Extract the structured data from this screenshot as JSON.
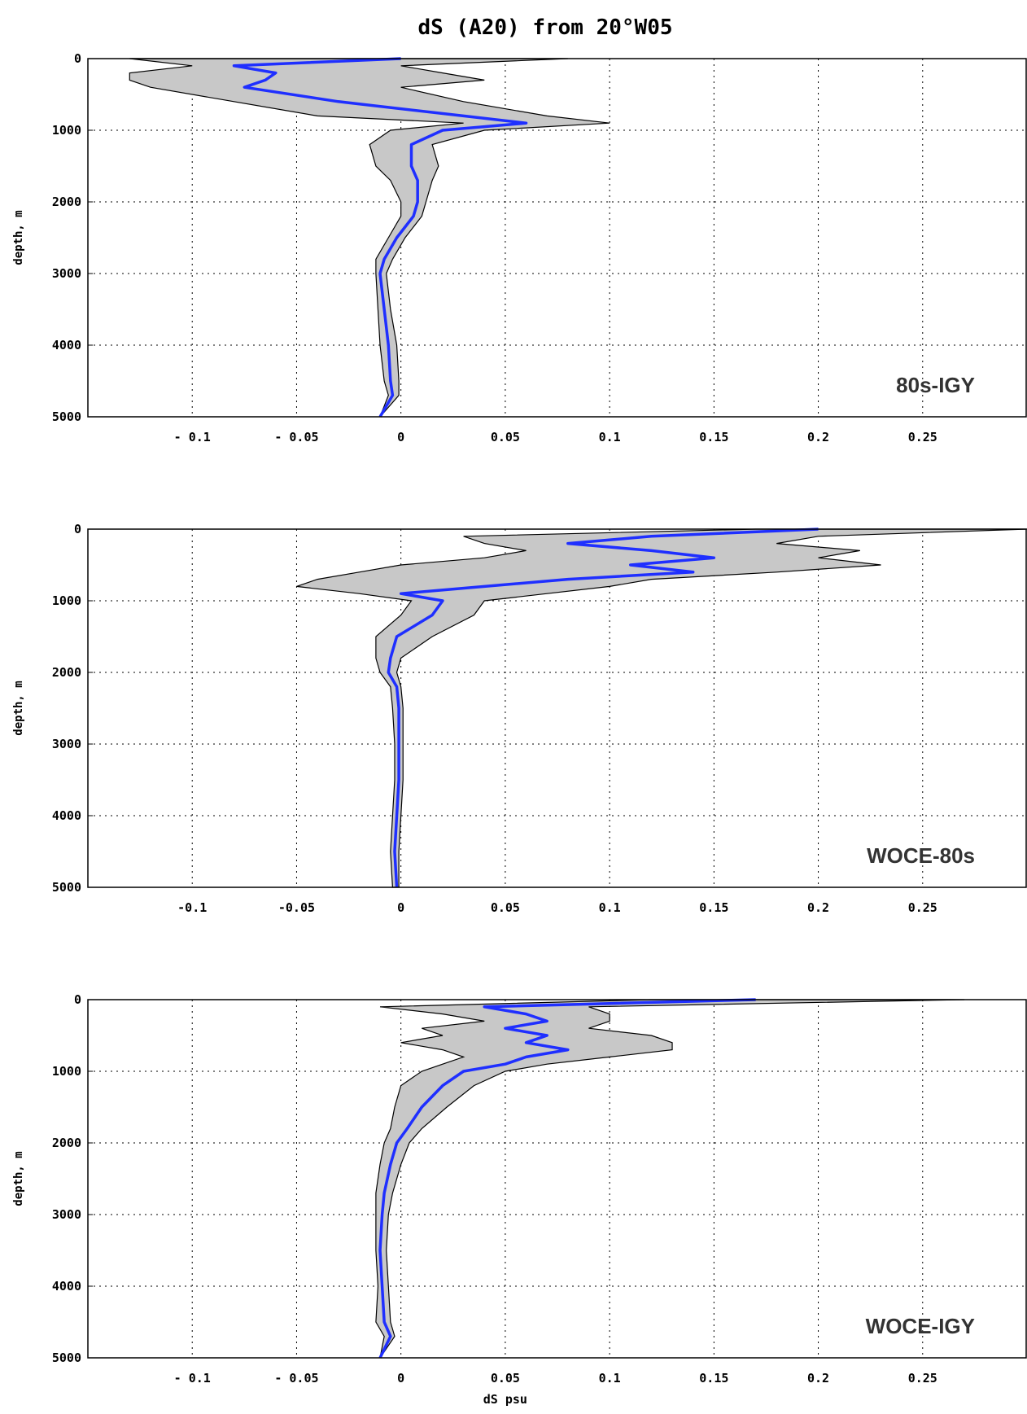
{
  "title": "dS (A20) from 20°W05",
  "colors": {
    "band": "#c8c8c8",
    "mean": "#1f2fff",
    "edge": "#000000"
  },
  "chart_data": [
    {
      "type": "line",
      "label": "80s-IGY",
      "ylabel": "depth, m",
      "xlabel": "",
      "xlim": [
        -0.15,
        0.3
      ],
      "ylim": [
        0,
        5000
      ],
      "x_ticks": [
        -0.1,
        -0.05,
        0,
        0.05,
        0.1,
        0.15,
        0.2,
        0.25
      ],
      "x_tick_labels": [
        "- 0.1",
        "- 0.05",
        "0",
        "0.05",
        "0.1",
        "0.15",
        "0.2",
        "0.25"
      ],
      "y_ticks": [
        0,
        1000,
        2000,
        3000,
        4000,
        5000
      ],
      "y_tick_labels": [
        "0",
        "1000",
        "2000",
        "3000",
        "4000",
        "5000"
      ],
      "grid": true,
      "depth": [
        0,
        100,
        200,
        300,
        400,
        600,
        800,
        900,
        1000,
        1200,
        1500,
        1700,
        2000,
        2200,
        2500,
        2800,
        3000,
        3500,
        4000,
        4500,
        4700,
        5000
      ],
      "mean": [
        0.0,
        -0.08,
        -0.06,
        -0.065,
        -0.075,
        -0.03,
        0.03,
        0.06,
        0.02,
        0.005,
        0.005,
        0.008,
        0.008,
        0.006,
        -0.002,
        -0.008,
        -0.01,
        -0.008,
        -0.006,
        -0.005,
        -0.004,
        -0.01
      ],
      "lower": [
        -0.13,
        -0.1,
        -0.13,
        -0.13,
        -0.12,
        -0.08,
        -0.04,
        0.03,
        -0.005,
        -0.015,
        -0.012,
        -0.005,
        0.0,
        0.0,
        -0.006,
        -0.012,
        -0.012,
        -0.011,
        -0.01,
        -0.008,
        -0.006,
        -0.01
      ],
      "upper": [
        0.08,
        0.0,
        0.02,
        0.04,
        0.0,
        0.03,
        0.07,
        0.1,
        0.04,
        0.015,
        0.018,
        0.015,
        0.012,
        0.01,
        0.002,
        -0.004,
        -0.007,
        -0.005,
        -0.002,
        -0.001,
        -0.001,
        -0.01
      ]
    },
    {
      "type": "line",
      "label": "WOCE-80s",
      "ylabel": "depth, m",
      "xlabel": "",
      "xlim": [
        -0.15,
        0.3
      ],
      "ylim": [
        0,
        5000
      ],
      "x_ticks": [
        -0.1,
        -0.05,
        0,
        0.05,
        0.1,
        0.15,
        0.2,
        0.25
      ],
      "x_tick_labels": [
        "-0.1",
        "-0.05",
        "0",
        "0.05",
        "0.1",
        "0.15",
        "0.2",
        "0.25"
      ],
      "y_ticks": [
        0,
        1000,
        2000,
        3000,
        4000,
        5000
      ],
      "y_tick_labels": [
        "0",
        "1000",
        "2000",
        "3000",
        "4000",
        "5000"
      ],
      "grid": true,
      "depth": [
        0,
        100,
        200,
        300,
        400,
        500,
        600,
        700,
        800,
        900,
        1000,
        1200,
        1500,
        1800,
        2000,
        2200,
        2500,
        3000,
        3500,
        4000,
        4500,
        5000
      ],
      "mean": [
        0.2,
        0.12,
        0.08,
        0.12,
        0.15,
        0.11,
        0.14,
        0.08,
        0.04,
        0.0,
        0.02,
        0.015,
        -0.002,
        -0.005,
        -0.006,
        -0.002,
        -0.001,
        -0.001,
        -0.001,
        -0.002,
        -0.003,
        -0.002
      ],
      "lower": [
        0.17,
        0.03,
        0.04,
        0.06,
        0.04,
        0.0,
        -0.02,
        -0.04,
        -0.05,
        -0.02,
        0.005,
        0.0,
        -0.012,
        -0.012,
        -0.01,
        -0.005,
        -0.004,
        -0.003,
        -0.003,
        -0.004,
        -0.005,
        -0.004
      ],
      "upper": [
        0.3,
        0.2,
        0.18,
        0.22,
        0.2,
        0.23,
        0.18,
        0.12,
        0.1,
        0.07,
        0.04,
        0.035,
        0.015,
        0.0,
        -0.002,
        0.0,
        0.001,
        0.001,
        0.001,
        0.0,
        -0.001,
        -0.001
      ]
    },
    {
      "type": "line",
      "label": "WOCE-IGY",
      "ylabel": "depth, m",
      "xlabel": "dS psu",
      "xlim": [
        -0.15,
        0.3
      ],
      "ylim": [
        0,
        5000
      ],
      "x_ticks": [
        -0.1,
        -0.05,
        0,
        0.05,
        0.1,
        0.15,
        0.2,
        0.25
      ],
      "x_tick_labels": [
        "- 0.1",
        "- 0.05",
        "0",
        "0.05",
        "0.1",
        "0.15",
        "0.2",
        "0.25"
      ],
      "y_ticks": [
        0,
        1000,
        2000,
        3000,
        4000,
        5000
      ],
      "y_tick_labels": [
        "0",
        "1000",
        "2000",
        "3000",
        "4000",
        "5000"
      ],
      "grid": true,
      "depth": [
        0,
        100,
        200,
        300,
        400,
        500,
        600,
        700,
        800,
        900,
        1000,
        1200,
        1500,
        1800,
        2000,
        2300,
        2700,
        3000,
        3500,
        4000,
        4500,
        4700,
        5000
      ],
      "mean": [
        0.17,
        0.04,
        0.06,
        0.07,
        0.05,
        0.07,
        0.06,
        0.08,
        0.06,
        0.05,
        0.03,
        0.02,
        0.01,
        0.003,
        -0.002,
        -0.005,
        -0.008,
        -0.009,
        -0.01,
        -0.009,
        -0.008,
        -0.005,
        -0.01
      ],
      "lower": [
        0.12,
        -0.01,
        0.02,
        0.04,
        0.01,
        0.02,
        0.0,
        0.02,
        0.03,
        0.02,
        0.01,
        0.0,
        -0.003,
        -0.005,
        -0.008,
        -0.01,
        -0.012,
        -0.012,
        -0.012,
        -0.011,
        -0.012,
        -0.008,
        -0.01
      ],
      "upper": [
        0.27,
        0.09,
        0.1,
        0.1,
        0.09,
        0.12,
        0.13,
        0.13,
        0.1,
        0.07,
        0.05,
        0.035,
        0.022,
        0.01,
        0.004,
        0.0,
        -0.004,
        -0.006,
        -0.007,
        -0.006,
        -0.005,
        -0.003,
        -0.01
      ]
    }
  ]
}
